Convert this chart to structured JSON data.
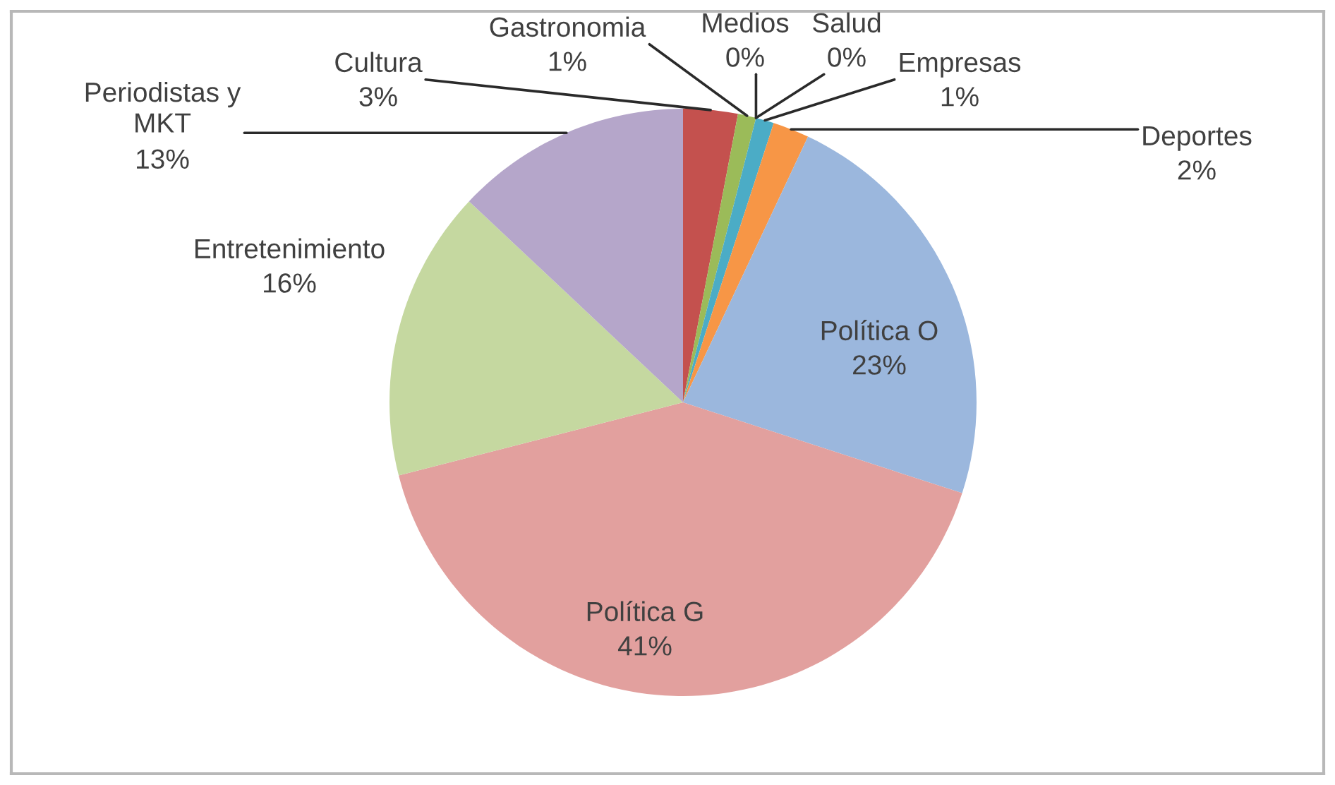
{
  "chart_data": {
    "type": "pie",
    "categories": [
      "Cultura",
      "Gastronomia",
      "Medios",
      "Salud",
      "Empresas",
      "Deportes",
      "Política O",
      "Política G",
      "Entretenimiento",
      "Periodistas y MKT"
    ],
    "values": [
      3,
      1,
      0,
      0,
      1,
      2,
      23,
      41,
      16,
      13
    ],
    "value_labels": [
      "3%",
      "1%",
      "0%",
      "0%",
      "1%",
      "2%",
      "23%",
      "41%",
      "16%",
      "13%"
    ],
    "colors": [
      "#c4514e",
      "#9bbb59",
      "#8064a2",
      "#4f81bd",
      "#4bacc6",
      "#f79646",
      "#9bb7dd",
      "#e2a09e",
      "#c5d8a0",
      "#b5a6ca"
    ]
  }
}
